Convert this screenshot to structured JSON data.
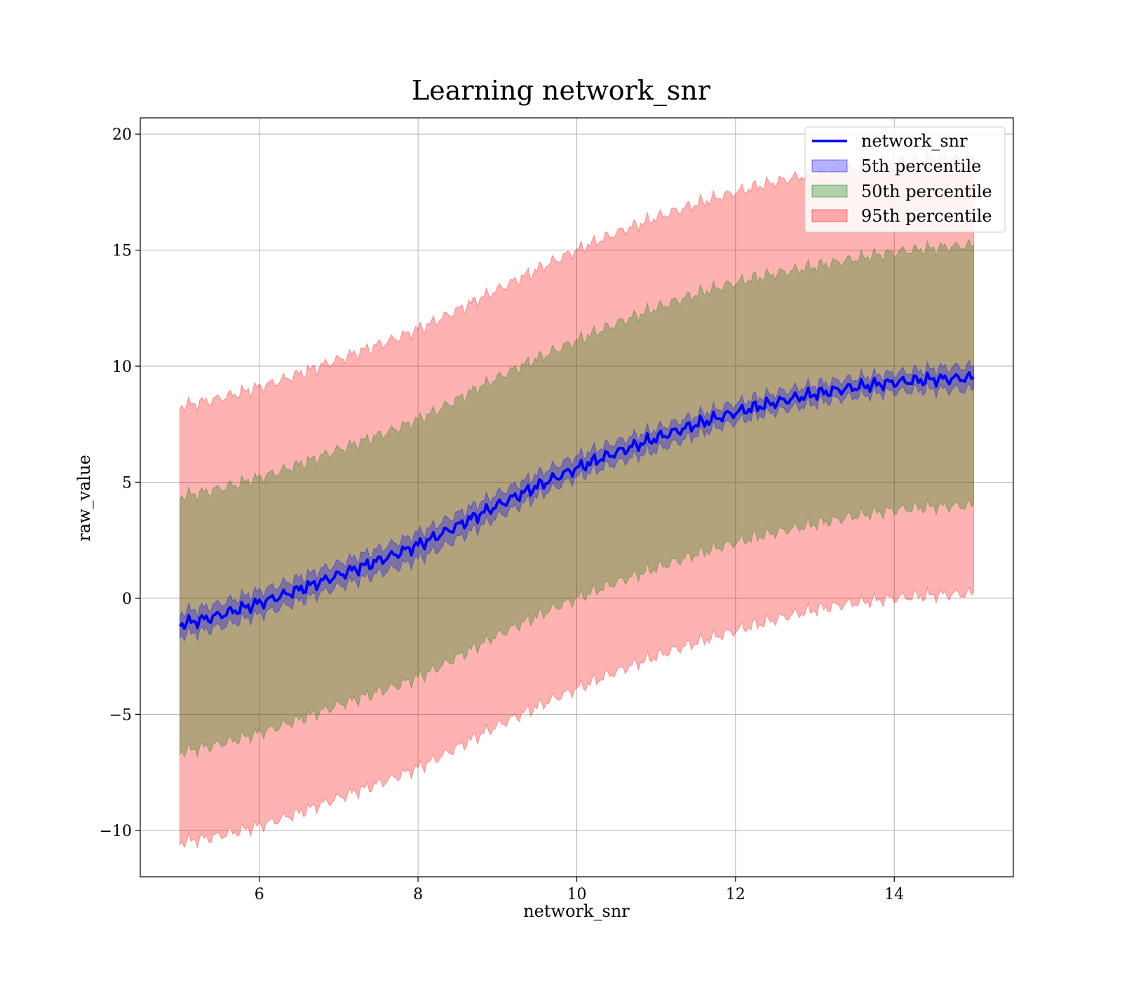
{
  "chart_data": {
    "type": "line",
    "title": "Learning network_snr",
    "xlabel": "network_snr",
    "ylabel": "raw_value",
    "xlim": [
      4.5,
      15.5
    ],
    "ylim": [
      -12,
      20.7
    ],
    "xticks": [
      6,
      8,
      10,
      12,
      14
    ],
    "yticks": [
      -10,
      -5,
      0,
      5,
      10,
      15,
      20
    ],
    "xtick_labels": [
      "6",
      "8",
      "10",
      "12",
      "14"
    ],
    "ytick_labels": [
      "−10",
      "−5",
      "0",
      "5",
      "10",
      "15",
      "20"
    ],
    "grid": true,
    "legend_position": "top-right",
    "legend": [
      "network_snr",
      "5th percentile",
      "50th percentile",
      "95th percentile"
    ],
    "colors": {
      "line": "#0000ff",
      "band_5th": "#0000ff",
      "band_50th": "#008000",
      "band_95th": "#ff0000"
    },
    "x": [
      5,
      6,
      7,
      8,
      9,
      10,
      11,
      12,
      13,
      14,
      15
    ],
    "series": [
      {
        "name": "network_snr",
        "values": [
          -1.1,
          -0.2,
          1.0,
          2.3,
          4.0,
          5.6,
          6.9,
          8.0,
          8.8,
          9.3,
          9.5
        ]
      },
      {
        "name": "5th percentile",
        "lower": [
          -1.6,
          -0.7,
          0.5,
          1.7,
          3.5,
          5.2,
          6.4,
          7.6,
          8.4,
          8.9,
          9.0
        ],
        "upper": [
          -0.6,
          0.3,
          1.5,
          2.8,
          4.5,
          6.1,
          7.3,
          8.4,
          9.2,
          9.7,
          10.0
        ]
      },
      {
        "name": "50th percentile",
        "lower": [
          -6.6,
          -5.8,
          -4.6,
          -3.4,
          -1.6,
          0.0,
          1.3,
          2.4,
          3.2,
          3.8,
          4.0
        ],
        "upper": [
          4.4,
          5.2,
          6.4,
          7.7,
          9.5,
          11.1,
          12.5,
          13.6,
          14.3,
          14.9,
          15.2
        ]
      },
      {
        "name": "95th percentile",
        "lower": [
          -10.5,
          -9.8,
          -8.6,
          -7.3,
          -5.5,
          -3.9,
          -2.5,
          -1.4,
          -0.5,
          0.0,
          0.2
        ],
        "upper": [
          8.3,
          9.1,
          10.3,
          11.6,
          13.3,
          15.0,
          16.4,
          17.5,
          18.3,
          18.8,
          19.0
        ]
      }
    ]
  }
}
